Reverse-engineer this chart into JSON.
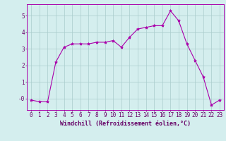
{
  "x": [
    0,
    1,
    2,
    3,
    4,
    5,
    6,
    7,
    8,
    9,
    10,
    11,
    12,
    13,
    14,
    15,
    16,
    17,
    18,
    19,
    20,
    21,
    22,
    23
  ],
  "y": [
    -0.1,
    -0.2,
    -0.2,
    2.2,
    3.1,
    3.3,
    3.3,
    3.3,
    3.4,
    3.4,
    3.5,
    3.1,
    3.7,
    4.2,
    4.3,
    4.4,
    4.4,
    5.3,
    4.7,
    3.3,
    2.3,
    1.3,
    -0.4,
    -0.1
  ],
  "line_color": "#aa00aa",
  "marker": "*",
  "marker_size": 3,
  "bg_color": "#d4eeee",
  "grid_color": "#aacccc",
  "xlabel": "Windchill (Refroidissement éolien,°C)",
  "xlabel_color": "#660066",
  "xlabel_fontsize": 6.0,
  "tick_color": "#660066",
  "tick_fontsize": 5.5,
  "ylim": [
    -0.7,
    5.7
  ],
  "xlim": [
    -0.5,
    23.5
  ],
  "yticks": [
    0,
    1,
    2,
    3,
    4,
    5
  ],
  "ytick_labels": [
    "-0",
    "1",
    "2",
    "3",
    "4",
    "5"
  ]
}
